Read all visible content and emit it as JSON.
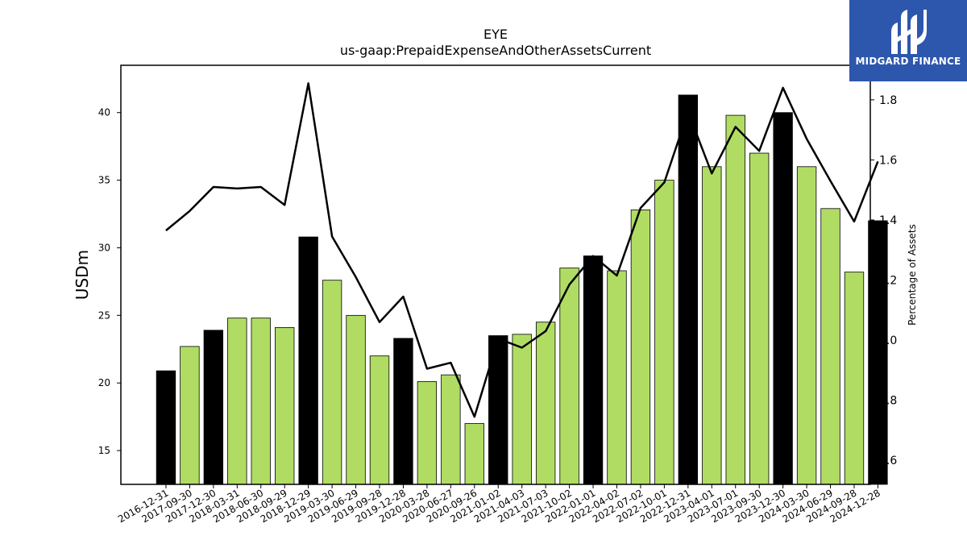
{
  "chart_data": {
    "type": "bar",
    "title": "EYE",
    "subtitle": "us-gaap:PrepaidExpenseAndOtherAssetsCurrent",
    "ylabel": "USDm",
    "y2label": "Percentage of Assets",
    "ylim": [
      12.5,
      43.5
    ],
    "y2lim": [
      0.52,
      1.915
    ],
    "yticks": [
      15,
      20,
      25,
      30,
      35,
      40
    ],
    "y2ticks": [
      0.6,
      0.8,
      1.0,
      1.2,
      1.4,
      1.6,
      1.8
    ],
    "y2tick_labels": [
      "0.6",
      "0.8",
      "1.0",
      "1.2",
      "1.4",
      "1.6",
      "1.8"
    ],
    "categories": [
      "2016-12-31",
      "2017-09-30",
      "2017-12-30",
      "2018-03-31",
      "2018-06-30",
      "2018-09-29",
      "2018-12-29",
      "2019-03-30",
      "2019-06-29",
      "2019-09-28",
      "2019-12-28",
      "2020-03-28",
      "2020-06-27",
      "2020-09-26",
      "2021-01-02",
      "2021-04-03",
      "2021-07-03",
      "2021-10-02",
      "2022-01-01",
      "2022-04-02",
      "2022-07-02",
      "2022-10-01",
      "2022-12-31",
      "2023-04-01",
      "2023-07-01",
      "2023-09-30",
      "2023-12-30",
      "2024-03-30",
      "2024-06-29",
      "2024-09-28",
      "2024-12-28"
    ],
    "series": [
      {
        "type": "bar",
        "values": [
          20.9,
          22.7,
          23.9,
          24.8,
          24.8,
          24.1,
          30.8,
          27.6,
          25.0,
          22.0,
          23.3,
          20.1,
          20.6,
          17.0,
          23.5,
          23.6,
          24.5,
          28.5,
          29.4,
          28.3,
          32.8,
          35.0,
          41.3,
          36.0,
          39.8,
          37.0,
          40.0,
          36.0,
          32.9,
          28.2,
          32.0
        ],
        "colors": [
          "#000000",
          "#b0dc64",
          "#000000",
          "#b0dc64",
          "#b0dc64",
          "#b0dc64",
          "#000000",
          "#b0dc64",
          "#b0dc64",
          "#b0dc64",
          "#000000",
          "#b0dc64",
          "#b0dc64",
          "#b0dc64",
          "#000000",
          "#b0dc64",
          "#b0dc64",
          "#b0dc64",
          "#000000",
          "#b0dc64",
          "#b0dc64",
          "#b0dc64",
          "#000000",
          "#b0dc64",
          "#b0dc64",
          "#b0dc64",
          "#000000",
          "#b0dc64",
          "#b0dc64",
          "#b0dc64",
          "#000000"
        ]
      },
      {
        "type": "line",
        "axis": "right",
        "color": "#000000",
        "values": [
          1.365,
          1.43,
          1.51,
          1.505,
          1.51,
          1.45,
          1.855,
          1.345,
          1.21,
          1.06,
          1.145,
          0.905,
          0.925,
          0.745,
          1.005,
          0.975,
          1.03,
          1.185,
          1.28,
          1.215,
          1.44,
          1.525,
          1.76,
          1.555,
          1.71,
          1.63,
          1.84,
          1.67,
          1.53,
          1.395,
          1.595
        ]
      }
    ],
    "grid": false,
    "legend": "none"
  },
  "logo": {
    "text": "MIDGARD FINANCE",
    "icon": "midgard-logo-icon",
    "background": "#2d57ad"
  }
}
